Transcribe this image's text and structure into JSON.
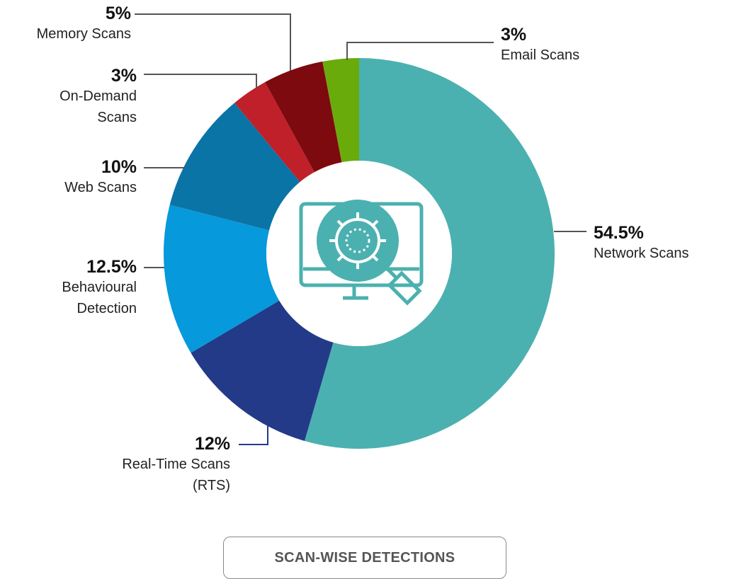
{
  "chart_data": {
    "type": "pie",
    "title": "SCAN-WISE DETECTIONS",
    "categories": [
      "Network Scans",
      "Real-Time Scans (RTS)",
      "Behavioural Detection",
      "Web Scans",
      "On-Demand Scans",
      "Memory Scans",
      "Email Scans"
    ],
    "values": [
      54.5,
      12,
      12.5,
      10,
      3,
      5,
      3
    ],
    "value_labels": [
      "54.5%",
      "12%",
      "12.5%",
      "10%",
      "3%",
      "5%",
      "3%"
    ],
    "colors": [
      "#4bb1b0",
      "#233a88",
      "#0699db",
      "#0a74a6",
      "#c0202a",
      "#7d0a0e",
      "#6aab0c"
    ]
  }
}
